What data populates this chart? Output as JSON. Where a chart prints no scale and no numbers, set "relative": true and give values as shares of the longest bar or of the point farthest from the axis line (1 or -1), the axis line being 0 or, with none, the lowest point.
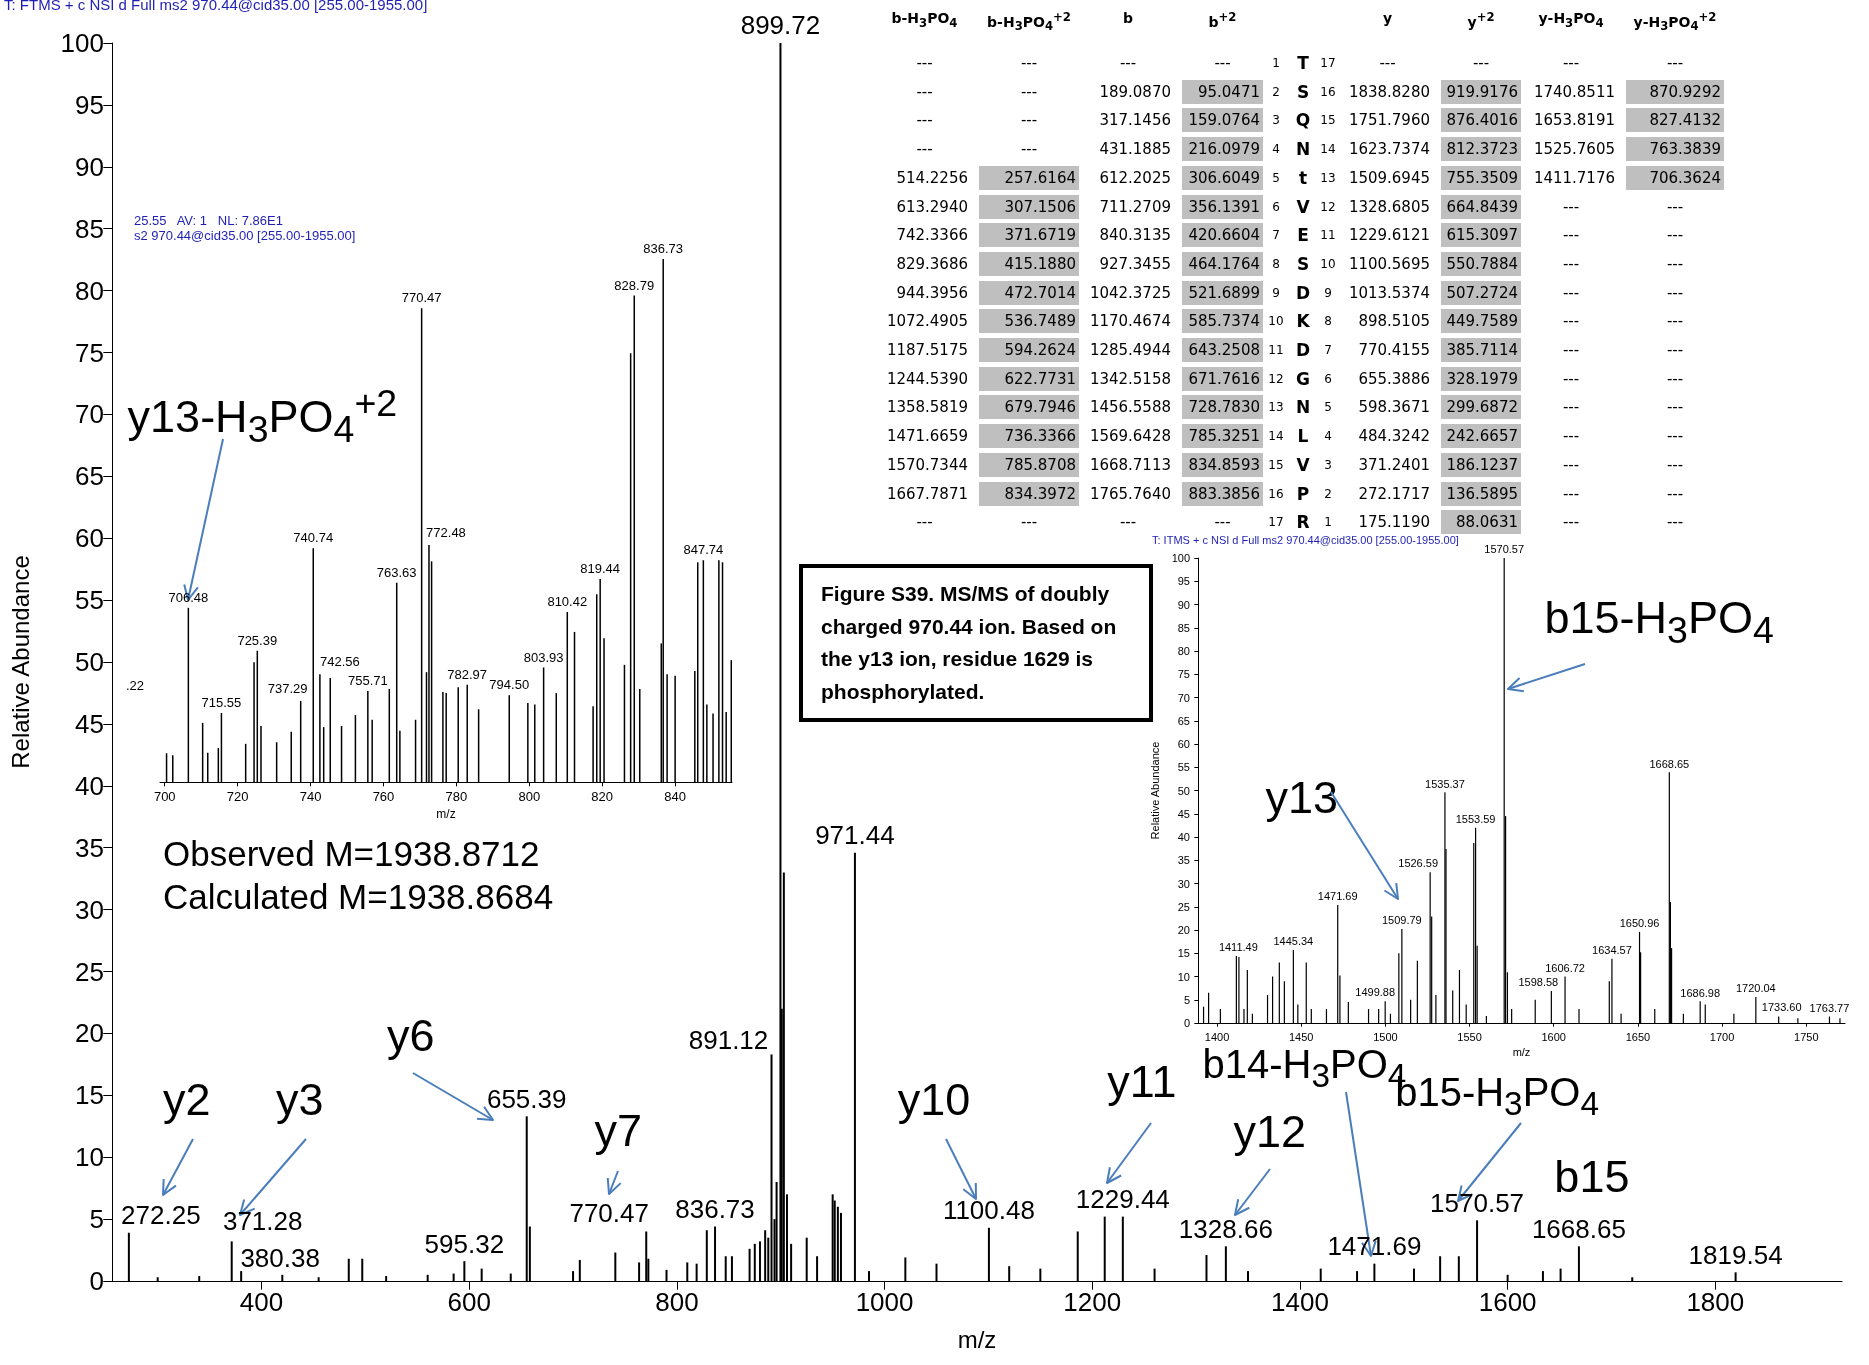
{
  "chart_data": [
    {
      "type": "bar",
      "xlabel": "m/z",
      "ylabel": "Relative Abundance",
      "color": "#000000",
      "xlim": [
        256,
        1922
      ],
      "xticks": [
        400,
        600,
        800,
        1000,
        1200,
        1400,
        1600,
        1800
      ],
      "ylim": [
        0,
        100
      ],
      "yticks": [
        0,
        5,
        10,
        15,
        20,
        25,
        30,
        35,
        40,
        45,
        50,
        55,
        60,
        65,
        70,
        75,
        80,
        85,
        90,
        95,
        100
      ],
      "x": [
        272.25,
        300,
        340,
        371.28,
        380.38,
        420,
        455,
        484,
        497,
        520,
        560,
        585,
        595.32,
        612,
        640,
        655.39,
        658.4,
        700,
        706.5,
        740.7,
        763.6,
        770.47,
        772.5,
        790,
        810,
        819,
        828.8,
        836.73,
        847,
        853,
        870,
        875,
        880,
        885,
        888,
        891.12,
        894,
        896,
        899.72,
        901,
        903,
        906,
        910,
        925,
        935,
        950,
        952,
        955,
        958,
        971.44,
        985,
        1020,
        1050,
        1100.48,
        1120,
        1150,
        1186,
        1212,
        1229.44,
        1260,
        1310,
        1328.66,
        1350,
        1420,
        1455,
        1471.69,
        1509.8,
        1535,
        1553,
        1570.57,
        1600,
        1634,
        1651,
        1668.65,
        1720,
        1819.54
      ],
      "values": [
        3.9,
        0.3,
        0.4,
        3.2,
        0.8,
        0.5,
        0.3,
        1.8,
        1.8,
        0.4,
        0.5,
        0.6,
        1.6,
        1.0,
        0.6,
        13.3,
        4.4,
        0.8,
        1.7,
        2.3,
        1.5,
        4.0,
        1.8,
        0.9,
        1.5,
        1.4,
        4.1,
        4.4,
        2.0,
        2.0,
        2.6,
        3.0,
        3.2,
        4.1,
        3.5,
        18.3,
        5,
        8,
        100,
        22,
        33,
        7,
        3,
        3.5,
        2,
        7.0,
        6.5,
        6.0,
        5.5,
        34.6,
        0.8,
        1.9,
        1.4,
        4.3,
        1.2,
        1.0,
        4.0,
        5.2,
        5.2,
        1.0,
        2.1,
        2.8,
        0.8,
        1.0,
        0.8,
        1.4,
        1.0,
        2.0,
        2.0,
        4.9,
        0.5,
        0.8,
        1.0,
        2.8,
        0.3,
        0.7
      ],
      "annotations": [
        "T: FTMS + c NSI d Full ms2 970.44@cid35.00 [255.00-1955.00]",
        "Observed M=1938.8712",
        "Calculated M=1938.8684",
        "Figure S39. MS/MS of doubly charged 970.44 ion. Based on the y13 ion, residue 1629 is phosphorylated.",
        {
          "text": "y2",
          "x": 272.25,
          "y": 3.9
        },
        {
          "text": "y3",
          "x": 371.28,
          "y": 3.2
        },
        {
          "text": "y6",
          "x": 655.39,
          "y": 13.3
        },
        {
          "text": "y7",
          "x": 770.47,
          "y": 4.0
        },
        {
          "text": "y10",
          "x": 1100.48,
          "y": 4.3
        },
        {
          "text": "y11",
          "x": 1229.44,
          "y": 5.2
        },
        {
          "text": "y12",
          "x": 1328.66,
          "y": 2.8
        },
        {
          "text": "b14-H$_{3}$PO$_{4}$",
          "x": 1471.69,
          "y": 1.4
        },
        {
          "text": "b15-H$_{3}$PO$_{4}$",
          "x": 1570.57,
          "y": 4.9
        },
        {
          "text": "b15",
          "x": 1668.65,
          "y": 2.8
        },
        {
          "text": "272.25",
          "x": 272.25,
          "y": 3.9
        },
        {
          "text": "371.28",
          "x": 371.28,
          "y": 3.2
        },
        {
          "text": "380.38",
          "x": 380.38,
          "y": 0.8
        },
        {
          "text": "595.32",
          "x": 595.32,
          "y": 1.6
        },
        {
          "text": "655.39",
          "x": 655.39,
          "y": 13.3
        },
        {
          "text": "770.47",
          "x": 770.47,
          "y": 4.0
        },
        {
          "text": "836.73",
          "x": 836.73,
          "y": 4.4
        },
        {
          "text": "891.12",
          "x": 891.12,
          "y": 18.3
        },
        {
          "text": "899.72",
          "x": 899.72,
          "y": 100
        },
        {
          "text": "971.44",
          "x": 971.44,
          "y": 34.6
        },
        {
          "text": "1100.48",
          "x": 1100.48,
          "y": 4.3
        },
        {
          "text": "1229.44",
          "x": 1229.44,
          "y": 5.2
        },
        {
          "text": "1328.66",
          "x": 1328.66,
          "y": 2.8
        },
        {
          "text": "1471.69",
          "x": 1471.69,
          "y": 1.4
        },
        {
          "text": "1570.57",
          "x": 1570.57,
          "y": 4.9
        },
        {
          "text": "1668.65",
          "x": 1668.65,
          "y": 2.8
        },
        {
          "text": "1819.54",
          "x": 1819.54,
          "y": 0.7
        }
      ]
    },
    {
      "type": "bar",
      "xlabel": "m/z",
      "color": "#000000",
      "relative": true,
      "xlim": [
        698.7,
        855.6
      ],
      "xticks": [
        700,
        720,
        740,
        760,
        780,
        800,
        820,
        840
      ],
      "x": [
        700.5,
        702.2,
        706.48,
        710.4,
        711.8,
        714.7,
        715.55,
        722.2,
        724.5,
        725.39,
        726.4,
        730.7,
        734.7,
        737.29,
        740.74,
        742.56,
        743.6,
        745.4,
        748.5,
        752.3,
        755.71,
        756.9,
        761.6,
        763.63,
        764.5,
        768.8,
        770.47,
        771.8,
        772.48,
        773.2,
        776.3,
        777.2,
        780.5,
        782.97,
        786.1,
        794.5,
        799.6,
        801.5,
        803.93,
        807.4,
        810.42,
        812.4,
        817.5,
        818.5,
        819.44,
        820.5,
        826.1,
        827.8,
        828.79,
        830.3,
        836.2,
        836.73,
        837.8,
        840,
        845.4,
        846.2,
        847.74,
        848.7,
        850.4,
        852,
        853,
        854,
        855.4
      ],
      "values": [
        0.055,
        0.051,
        0.333,
        0.113,
        0.056,
        0.065,
        0.132,
        0.073,
        0.229,
        0.251,
        0.107,
        0.076,
        0.096,
        0.155,
        0.447,
        0.206,
        0.105,
        0.199,
        0.107,
        0.128,
        0.174,
        0.119,
        0.178,
        0.381,
        0.098,
        0.119,
        0.906,
        0.21,
        0.453,
        0.422,
        0.172,
        0.17,
        0.181,
        0.186,
        0.139,
        0.166,
        0.151,
        0.148,
        0.219,
        0.17,
        0.325,
        0.287,
        0.145,
        0.359,
        0.388,
        0.275,
        0.224,
        0.82,
        0.93,
        0.178,
        0.265,
        1,
        0.206,
        0.203,
        0.212,
        0.42,
        0.424,
        0.148,
        0.131,
        0.424,
        0.42,
        0.134,
        0.233
      ],
      "annotations": [
        "25.55   AV: 1   NL: 7.86E1",
        "s2 970.44@cid35.00 [255.00-1955.00]",
        ".22",
        {
          "text": "y13-H$_{3}$PO$_{4}$$^{+2}$",
          "x": 706.48,
          "y": 0.333
        },
        {
          "text": "706.48",
          "x": 706.48,
          "y": 0.333
        },
        {
          "text": "715.55",
          "x": 715.55,
          "y": 0.132
        },
        {
          "text": "725.39",
          "x": 725.39,
          "y": 0.251
        },
        {
          "text": "737.29",
          "x": 737.29,
          "y": 0.155
        },
        {
          "text": "740.74",
          "x": 740.74,
          "y": 0.447
        },
        {
          "text": "742.56",
          "x": 742.56,
          "y": 0.206
        },
        {
          "text": "755.71",
          "x": 755.71,
          "y": 0.174
        },
        {
          "text": "763.63",
          "x": 763.63,
          "y": 0.381
        },
        {
          "text": "770.47",
          "x": 770.47,
          "y": 0.906
        },
        {
          "text": "772.48",
          "x": 772.48,
          "y": 0.453
        },
        {
          "text": "782.97",
          "x": 782.97,
          "y": 0.186
        },
        {
          "text": "794.50",
          "x": 794.5,
          "y": 0.166
        },
        {
          "text": "803.93",
          "x": 803.93,
          "y": 0.219
        },
        {
          "text": "810.42",
          "x": 810.42,
          "y": 0.325
        },
        {
          "text": "819.44",
          "x": 819.44,
          "y": 0.388
        },
        {
          "text": "828.79",
          "x": 828.79,
          "y": 0.93
        },
        {
          "text": "836.73",
          "x": 836.73,
          "y": 1
        },
        {
          "text": "847.74",
          "x": 847.74,
          "y": 0.424
        }
      ]
    },
    {
      "type": "bar",
      "xlabel": "m/z",
      "ylabel": "Relative Abundance",
      "color": "#000000",
      "xlim": [
        1388.7,
        1773
      ],
      "xticks": [
        1400,
        1450,
        1500,
        1550,
        1600,
        1650,
        1700,
        1750
      ],
      "ylim": [
        0,
        100
      ],
      "yticks": [
        0,
        5,
        10,
        15,
        20,
        25,
        30,
        35,
        40,
        45,
        50,
        55,
        60,
        65,
        70,
        75,
        80,
        85,
        90,
        95,
        100
      ],
      "x": [
        1392,
        1395,
        1402,
        1411.49,
        1413,
        1416,
        1418,
        1421,
        1430,
        1433,
        1437,
        1440,
        1445.34,
        1448,
        1453,
        1456,
        1465,
        1471.69,
        1473,
        1478,
        1490,
        1496,
        1499.88,
        1503,
        1508,
        1509.79,
        1515,
        1519,
        1526.59,
        1527.5,
        1530,
        1535.37,
        1536,
        1540,
        1544,
        1548,
        1552.5,
        1553.59,
        1554.5,
        1560,
        1570.57,
        1571.4,
        1572.5,
        1575,
        1589,
        1598.58,
        1606.72,
        1615,
        1633,
        1634.57,
        1640,
        1650.96,
        1651.6,
        1660,
        1668.65,
        1669.3,
        1670,
        1677,
        1686.98,
        1690,
        1707,
        1720.04,
        1733.6,
        1745,
        1763.77,
        1770
      ],
      "values": [
        3.5,
        6.5,
        3,
        14.4,
        14.2,
        3,
        11.4,
        2,
        6,
        10,
        13,
        9,
        15.7,
        4,
        13,
        3,
        3,
        25.4,
        10.2,
        4.5,
        3,
        3,
        4.7,
        2,
        15,
        20.2,
        5,
        13.4,
        32.4,
        22.9,
        6,
        49.6,
        37.4,
        7,
        11.4,
        4,
        38.7,
        42,
        16.6,
        1.5,
        100,
        44.5,
        10.9,
        3,
        5,
        6.9,
        10,
        3,
        9,
        13.8,
        2,
        19.6,
        15.2,
        3,
        53.9,
        26,
        16.1,
        2,
        4.7,
        4,
        2,
        5.6,
        1.4,
        1,
        1.4,
        1
      ],
      "annotations": [
        "T: ITMS + c NSI d Full ms2 970.44@cid35.00 [255.00-1955.00]",
        {
          "text": "y13",
          "x": 1509.79,
          "y": 20.2
        },
        {
          "text": "b15-H$_{3}$PO$_{4}$",
          "x": 1570.57,
          "y": 70
        },
        {
          "text": "1411.49",
          "x": 1411.49,
          "y": 14.4
        },
        {
          "text": "1445.34",
          "x": 1445.34,
          "y": 15.7
        },
        {
          "text": "1471.69",
          "x": 1471.69,
          "y": 25.4
        },
        {
          "text": "1499.88",
          "x": 1499.88,
          "y": 4.7
        },
        {
          "text": "1509.79",
          "x": 1509.79,
          "y": 20.2
        },
        {
          "text": "1526.59",
          "x": 1526.59,
          "y": 32.4
        },
        {
          "text": "1535.37",
          "x": 1535.37,
          "y": 49.6
        },
        {
          "text": "1553.59",
          "x": 1553.59,
          "y": 42
        },
        {
          "text": "1570.57",
          "x": 1570.57,
          "y": 100
        },
        {
          "text": "1598.58",
          "x": 1598.58,
          "y": 6.9
        },
        {
          "text": "1606.72",
          "x": 1606.72,
          "y": 10
        },
        {
          "text": "1634.57",
          "x": 1634.57,
          "y": 13.8
        },
        {
          "text": "1650.96",
          "x": 1650.96,
          "y": 19.6
        },
        {
          "text": "1668.65",
          "x": 1668.65,
          "y": 53.9
        },
        {
          "text": "1686.98",
          "x": 1686.98,
          "y": 4.7
        },
        {
          "text": "1720.04",
          "x": 1720.04,
          "y": 5.6
        },
        {
          "text": "1733.60",
          "x": 1733.6,
          "y": 1.4
        },
        {
          "text": "1763.77",
          "x": 1763.77,
          "y": 1.4
        }
      ]
    },
    {
      "type": "other",
      "categories": [
        "b-H$_{3}$PO$_{4}$",
        "b-H$_{3}$PO$_{4}$$^{+2}$",
        "b",
        "b$^{+2}$",
        null,
        null,
        null,
        "y",
        "y$^{+2}$",
        "y-H$_{3}$PO$_{4}$",
        "y-H$_{3}$PO$_{4}$$^{+2}$"
      ],
      "colors": [
        null,
        "#bfbfbf",
        null,
        "#bfbfbf",
        null,
        null,
        null,
        null,
        "#bfbfbf",
        null,
        "#bfbfbf"
      ],
      "cell_labels": [
        [
          "---",
          "---",
          "---",
          "---",
          "1",
          "T",
          "17",
          "---",
          "---",
          "---",
          "---"
        ],
        [
          "---",
          "---",
          "189.0870",
          "95.0471",
          "2",
          "S",
          "16",
          "1838.8280",
          "919.9176",
          "1740.8511",
          "870.9292"
        ],
        [
          "---",
          "---",
          "317.1456",
          "159.0764",
          "3",
          "Q",
          "15",
          "1751.7960",
          "876.4016",
          "1653.8191",
          "827.4132"
        ],
        [
          "---",
          "---",
          "431.1885",
          "216.0979",
          "4",
          "N",
          "14",
          "1623.7374",
          "812.3723",
          "1525.7605",
          "763.3839"
        ],
        [
          "514.2256",
          "257.6164",
          "612.2025",
          "306.6049",
          "5",
          "t",
          "13",
          "1509.6945",
          "755.3509",
          "1411.7176",
          "706.3624"
        ],
        [
          "613.2940",
          "307.1506",
          "711.2709",
          "356.1391",
          "6",
          "V",
          "12",
          "1328.6805",
          "664.8439",
          "---",
          "---"
        ],
        [
          "742.3366",
          "371.6719",
          "840.3135",
          "420.6604",
          "7",
          "E",
          "11",
          "1229.6121",
          "615.3097",
          "---",
          "---"
        ],
        [
          "829.3686",
          "415.1880",
          "927.3455",
          "464.1764",
          "8",
          "S",
          "10",
          "1100.5695",
          "550.7884",
          "---",
          "---"
        ],
        [
          "944.3956",
          "472.7014",
          "1042.3725",
          "521.6899",
          "9",
          "D",
          "9",
          "1013.5374",
          "507.2724",
          "---",
          "---"
        ],
        [
          "1072.4905",
          "536.7489",
          "1170.4674",
          "585.7374",
          "10",
          "K",
          "8",
          "898.5105",
          "449.7589",
          "---",
          "---"
        ],
        [
          "1187.5175",
          "594.2624",
          "1285.4944",
          "643.2508",
          "11",
          "D",
          "7",
          "770.4155",
          "385.7114",
          "---",
          "---"
        ],
        [
          "1244.5390",
          "622.7731",
          "1342.5158",
          "671.7616",
          "12",
          "G",
          "6",
          "655.3886",
          "328.1979",
          "---",
          "---"
        ],
        [
          "1358.5819",
          "679.7946",
          "1456.5588",
          "728.7830",
          "13",
          "N",
          "5",
          "598.3671",
          "299.6872",
          "---",
          "---"
        ],
        [
          "1471.6659",
          "736.3366",
          "1569.6428",
          "785.3251",
          "14",
          "L",
          "4",
          "484.3242",
          "242.6657",
          "---",
          "---"
        ],
        [
          "1570.7344",
          "785.8708",
          "1668.7113",
          "834.8593",
          "15",
          "V",
          "3",
          "371.2401",
          "186.1237",
          "---",
          "---"
        ],
        [
          "1667.7871",
          "834.3972",
          "1765.7640",
          "883.3856",
          "16",
          "P",
          "2",
          "272.1717",
          "136.5895",
          "---",
          "---"
        ],
        [
          "---",
          "---",
          "---",
          "---",
          "17",
          "R",
          "1",
          "175.1190",
          "88.0631",
          "---",
          "---"
        ]
      ]
    }
  ]
}
